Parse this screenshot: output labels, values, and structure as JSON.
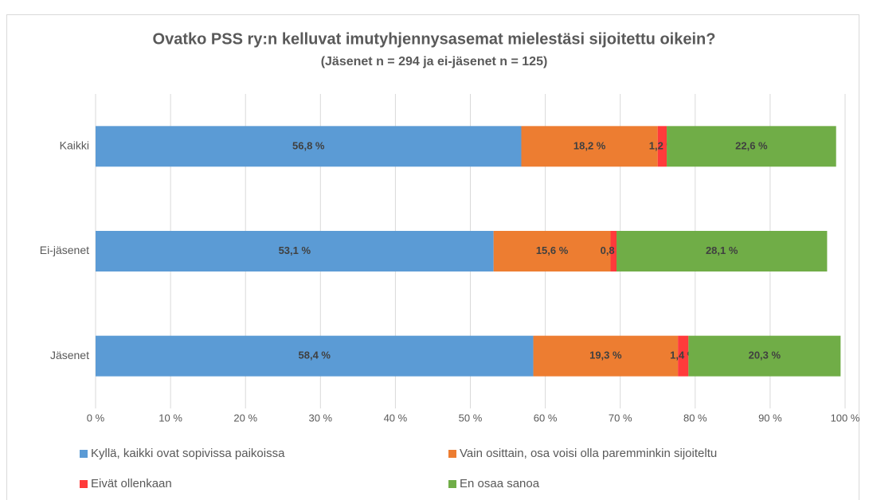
{
  "chart_data": {
    "type": "bar",
    "orientation": "horizontal",
    "stacked": true,
    "title": "Ovatko PSS ry:n kelluvat imutyhjennysasemat mielestäsi sijoitettu oikein?",
    "subtitle": "(Jäsenet n = 294 ja ei-jäsenet n = 125)",
    "categories": [
      "Kaikki",
      "Ei-jäsenet",
      "Jäsenet"
    ],
    "series": [
      {
        "name": "Kyllä, kaikki ovat sopivissa paikoissa",
        "color": "#5b9bd5",
        "values": [
          56.8,
          53.1,
          58.4
        ],
        "value_labels": [
          "56,8 %",
          "53,1 %",
          "58,4 %"
        ]
      },
      {
        "name": "Vain osittain, osa voisi olla paremminkin sijoiteltu",
        "color": "#ed7d31",
        "values": [
          18.2,
          15.6,
          19.3
        ],
        "value_labels": [
          "18,2 %",
          "15,6 %",
          "19,3 %"
        ]
      },
      {
        "name": "Eivät ollenkaan",
        "color": "#ff3b3b",
        "values": [
          1.2,
          0.8,
          1.4
        ],
        "value_labels": [
          "1,2 %",
          "0,8 %",
          "1,4 %"
        ]
      },
      {
        "name": "En osaa sanoa",
        "color": "#70ad47",
        "values": [
          22.6,
          28.1,
          20.3
        ],
        "value_labels": [
          "22,6 %",
          "28,1 %",
          "20,3 %"
        ]
      }
    ],
    "xlim": [
      0,
      100
    ],
    "xticks": [
      {
        "value": 0,
        "label": "0 %"
      },
      {
        "value": 10,
        "label": "10 %"
      },
      {
        "value": 20,
        "label": "20 %"
      },
      {
        "value": 30,
        "label": "30 %"
      },
      {
        "value": 40,
        "label": "40 %"
      },
      {
        "value": 50,
        "label": "50 %"
      },
      {
        "value": 60,
        "label": "60 %"
      },
      {
        "value": 70,
        "label": "70 %"
      },
      {
        "value": 80,
        "label": "80 %"
      },
      {
        "value": 90,
        "label": "90 %"
      },
      {
        "value": 100,
        "label": "100 %"
      }
    ],
    "grid": true,
    "legend": "bottom"
  }
}
